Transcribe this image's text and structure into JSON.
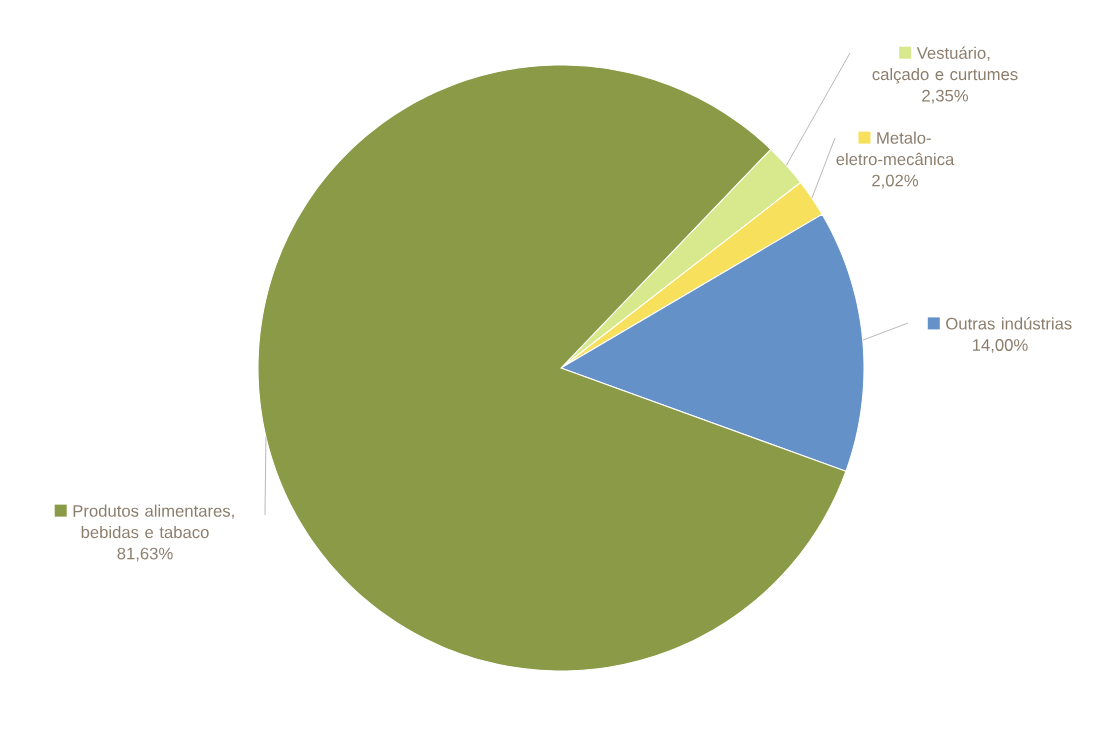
{
  "chart_data": {
    "type": "pie",
    "categories": [
      "Vestuário, calçado e curtumes",
      "Metalo-eletro-mecânica",
      "Outras indústrias",
      "Produtos alimentares, bebidas e tabaco"
    ],
    "values": [
      2.35,
      2.02,
      14.0,
      81.63
    ],
    "colors": [
      "#d7e98c",
      "#f6e05c",
      "#6491c8",
      "#8a9a46"
    ],
    "data_labels": true,
    "legend": "right",
    "value_labels": [
      "2,35%",
      "2,02%",
      "14,00%",
      "81,63%"
    ]
  }
}
